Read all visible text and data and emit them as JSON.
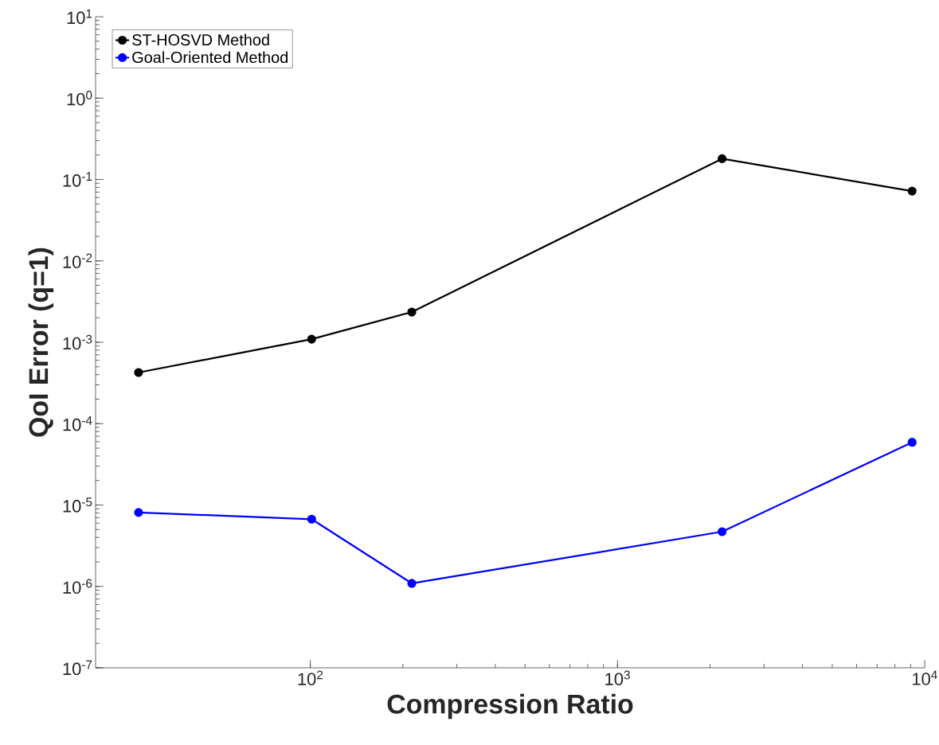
{
  "chart_data": {
    "type": "line",
    "xlabel": "Compression Ratio",
    "ylabel": "QoI Error (q=1)",
    "log": "xy",
    "grid": false,
    "legend": "top left",
    "marker": "circle",
    "line_style": "solid",
    "xlim": [
      20,
      10000
    ],
    "ylim": [
      1e-07,
      10
    ],
    "xticks": [
      {
        "value": 100,
        "label": "10$^{2}$"
      },
      {
        "value": 1000,
        "label": "10$^{3}$"
      },
      {
        "value": 10000,
        "label": "10$^{4}$"
      }
    ],
    "yticks": [
      {
        "value": 1e-07,
        "label": "10$^{-7}$"
      },
      {
        "value": 1e-06,
        "label": "10$^{-6}$"
      },
      {
        "value": 1e-05,
        "label": "10$^{-5}$"
      },
      {
        "value": 0.0001,
        "label": "10$^{-4}$"
      },
      {
        "value": 0.001,
        "label": "10$^{-3}$"
      },
      {
        "value": 0.01,
        "label": "10$^{-2}$"
      },
      {
        "value": 0.1,
        "label": "10$^{-1}$"
      },
      {
        "value": 1,
        "label": "10$^{0}$"
      },
      {
        "value": 10,
        "label": "10$^{1}$"
      }
    ],
    "x": [
      27.6,
      101,
      214,
      2190,
      9100
    ],
    "series": [
      {
        "name": "ST-HOSVD Method",
        "color": "#000000",
        "values": [
          0.000425,
          0.00109,
          0.00235,
          0.18,
          0.072
        ]
      },
      {
        "name": "Goal-Oriented Method",
        "color": "#0000ff",
        "values": [
          8.1e-06,
          6.7e-06,
          1.09e-06,
          4.7e-06,
          5.9e-05
        ]
      }
    ]
  }
}
